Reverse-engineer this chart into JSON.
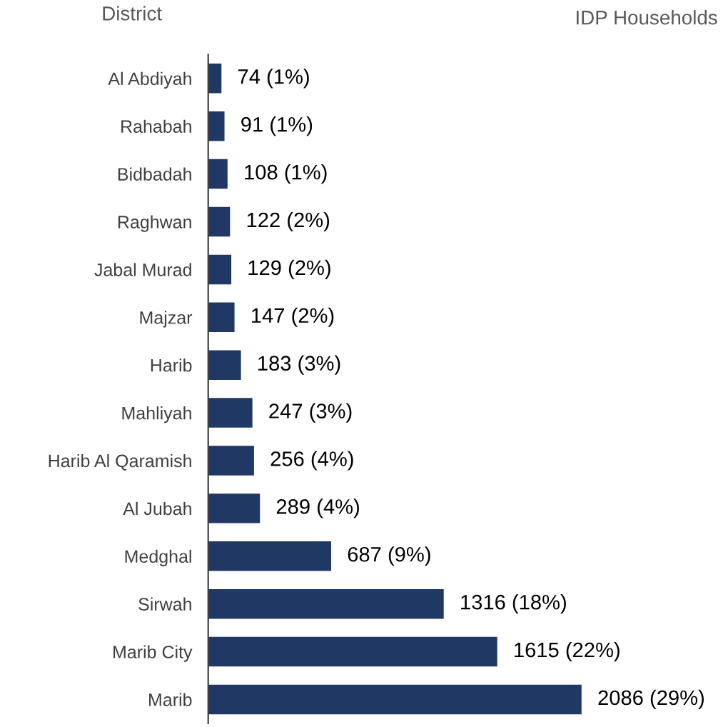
{
  "chart_data": {
    "type": "bar",
    "orientation": "horizontal",
    "ylabel": "District",
    "xlabel": "IDP Households",
    "categories": [
      "Al Abdiyah",
      "Rahabah",
      "Bidbadah",
      "Raghwan",
      "Jabal Murad",
      "Majzar",
      "Harib",
      "Mahliyah",
      "Harib Al Qaramish",
      "Al Jubah",
      "Medghal",
      "Sirwah",
      "Marib City",
      "Marib"
    ],
    "values": [
      74,
      91,
      108,
      122,
      129,
      147,
      183,
      247,
      256,
      289,
      687,
      1316,
      1615,
      2086
    ],
    "value_labels": [
      "74 (1%)",
      "91 (1%)",
      "108 (1%)",
      "122 (2%)",
      "129 (2%)",
      "147 (2%)",
      "183 (3%)",
      "247 (3%)",
      "256 (4%)",
      "289 (4%)",
      "687 (9%)",
      "1316 (18%)",
      "1615 (22%)",
      "2086 (29%)"
    ],
    "color": "#1f3864",
    "tick_labels": "y",
    "grid": false,
    "legend": false
  }
}
